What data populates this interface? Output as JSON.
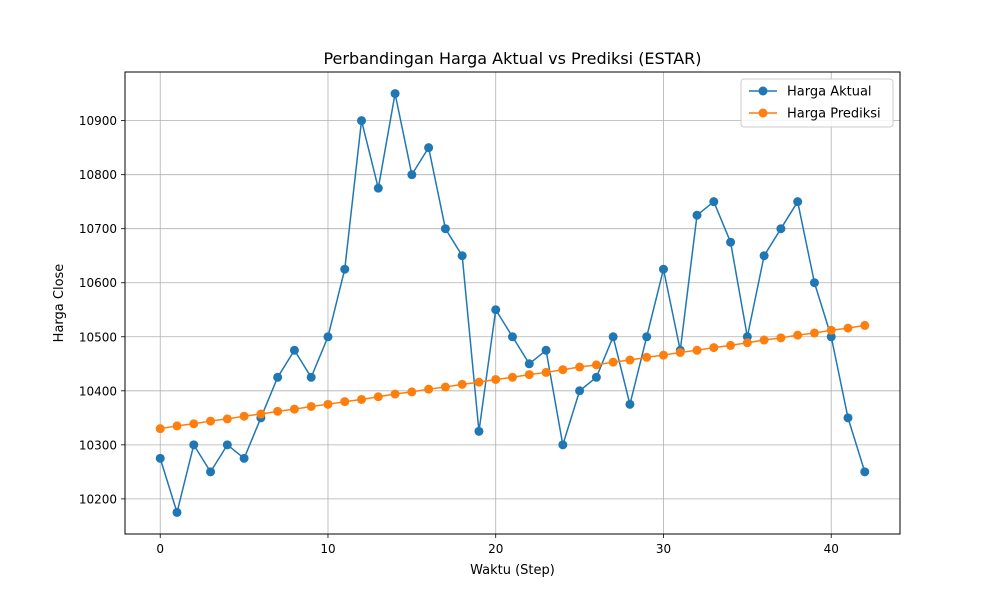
{
  "chart_data": {
    "type": "line",
    "title": "Perbandingan Harga Aktual vs Prediksi (ESTAR)",
    "xlabel": "Waktu (Step)",
    "ylabel": "Harga Close",
    "xlim": [
      -2.1,
      44.1
    ],
    "ylim": [
      10135,
      10990
    ],
    "xticks": [
      0,
      10,
      20,
      30,
      40
    ],
    "yticks": [
      10200,
      10300,
      10400,
      10500,
      10600,
      10700,
      10800,
      10900
    ],
    "xtick_labels": [
      "0",
      "10",
      "20",
      "30",
      "40"
    ],
    "ytick_labels": [
      "10200",
      "10300",
      "10400",
      "10500",
      "10600",
      "10700",
      "10800",
      "10900"
    ],
    "grid": true,
    "legend_position": "top-right",
    "x": [
      0,
      1,
      2,
      3,
      4,
      5,
      6,
      7,
      8,
      9,
      10,
      11,
      12,
      13,
      14,
      15,
      16,
      17,
      18,
      19,
      20,
      21,
      22,
      23,
      24,
      25,
      26,
      27,
      28,
      29,
      30,
      31,
      32,
      33,
      34,
      35,
      36,
      37,
      38,
      39,
      40,
      41,
      42
    ],
    "series": [
      {
        "name": "Harga Aktual",
        "color": "#1f77b4",
        "values": [
          10275,
          10175,
          10300,
          10250,
          10300,
          10275,
          10350,
          10425,
          10475,
          10425,
          10500,
          10625,
          10900,
          10775,
          10950,
          10800,
          10850,
          10700,
          10650,
          10325,
          10550,
          10500,
          10450,
          10475,
          10300,
          10400,
          10425,
          10500,
          10375,
          10500,
          10625,
          10475,
          10725,
          10750,
          10675,
          10500,
          10650,
          10700,
          10750,
          10600,
          10500,
          10350,
          10250
        ]
      },
      {
        "name": "Harga Prediksi",
        "color": "#ff7f0e",
        "values": [
          10330,
          10335,
          10339,
          10344,
          10348,
          10353,
          10357,
          10362,
          10366,
          10371,
          10375,
          10380,
          10384,
          10389,
          10394,
          10398,
          10403,
          10407,
          10412,
          10416,
          10421,
          10425,
          10430,
          10434,
          10439,
          10444,
          10448,
          10453,
          10457,
          10462,
          10466,
          10471,
          10475,
          10480,
          10484,
          10489,
          10494,
          10498,
          10503,
          10507,
          10512,
          10516,
          10521
        ]
      }
    ]
  }
}
